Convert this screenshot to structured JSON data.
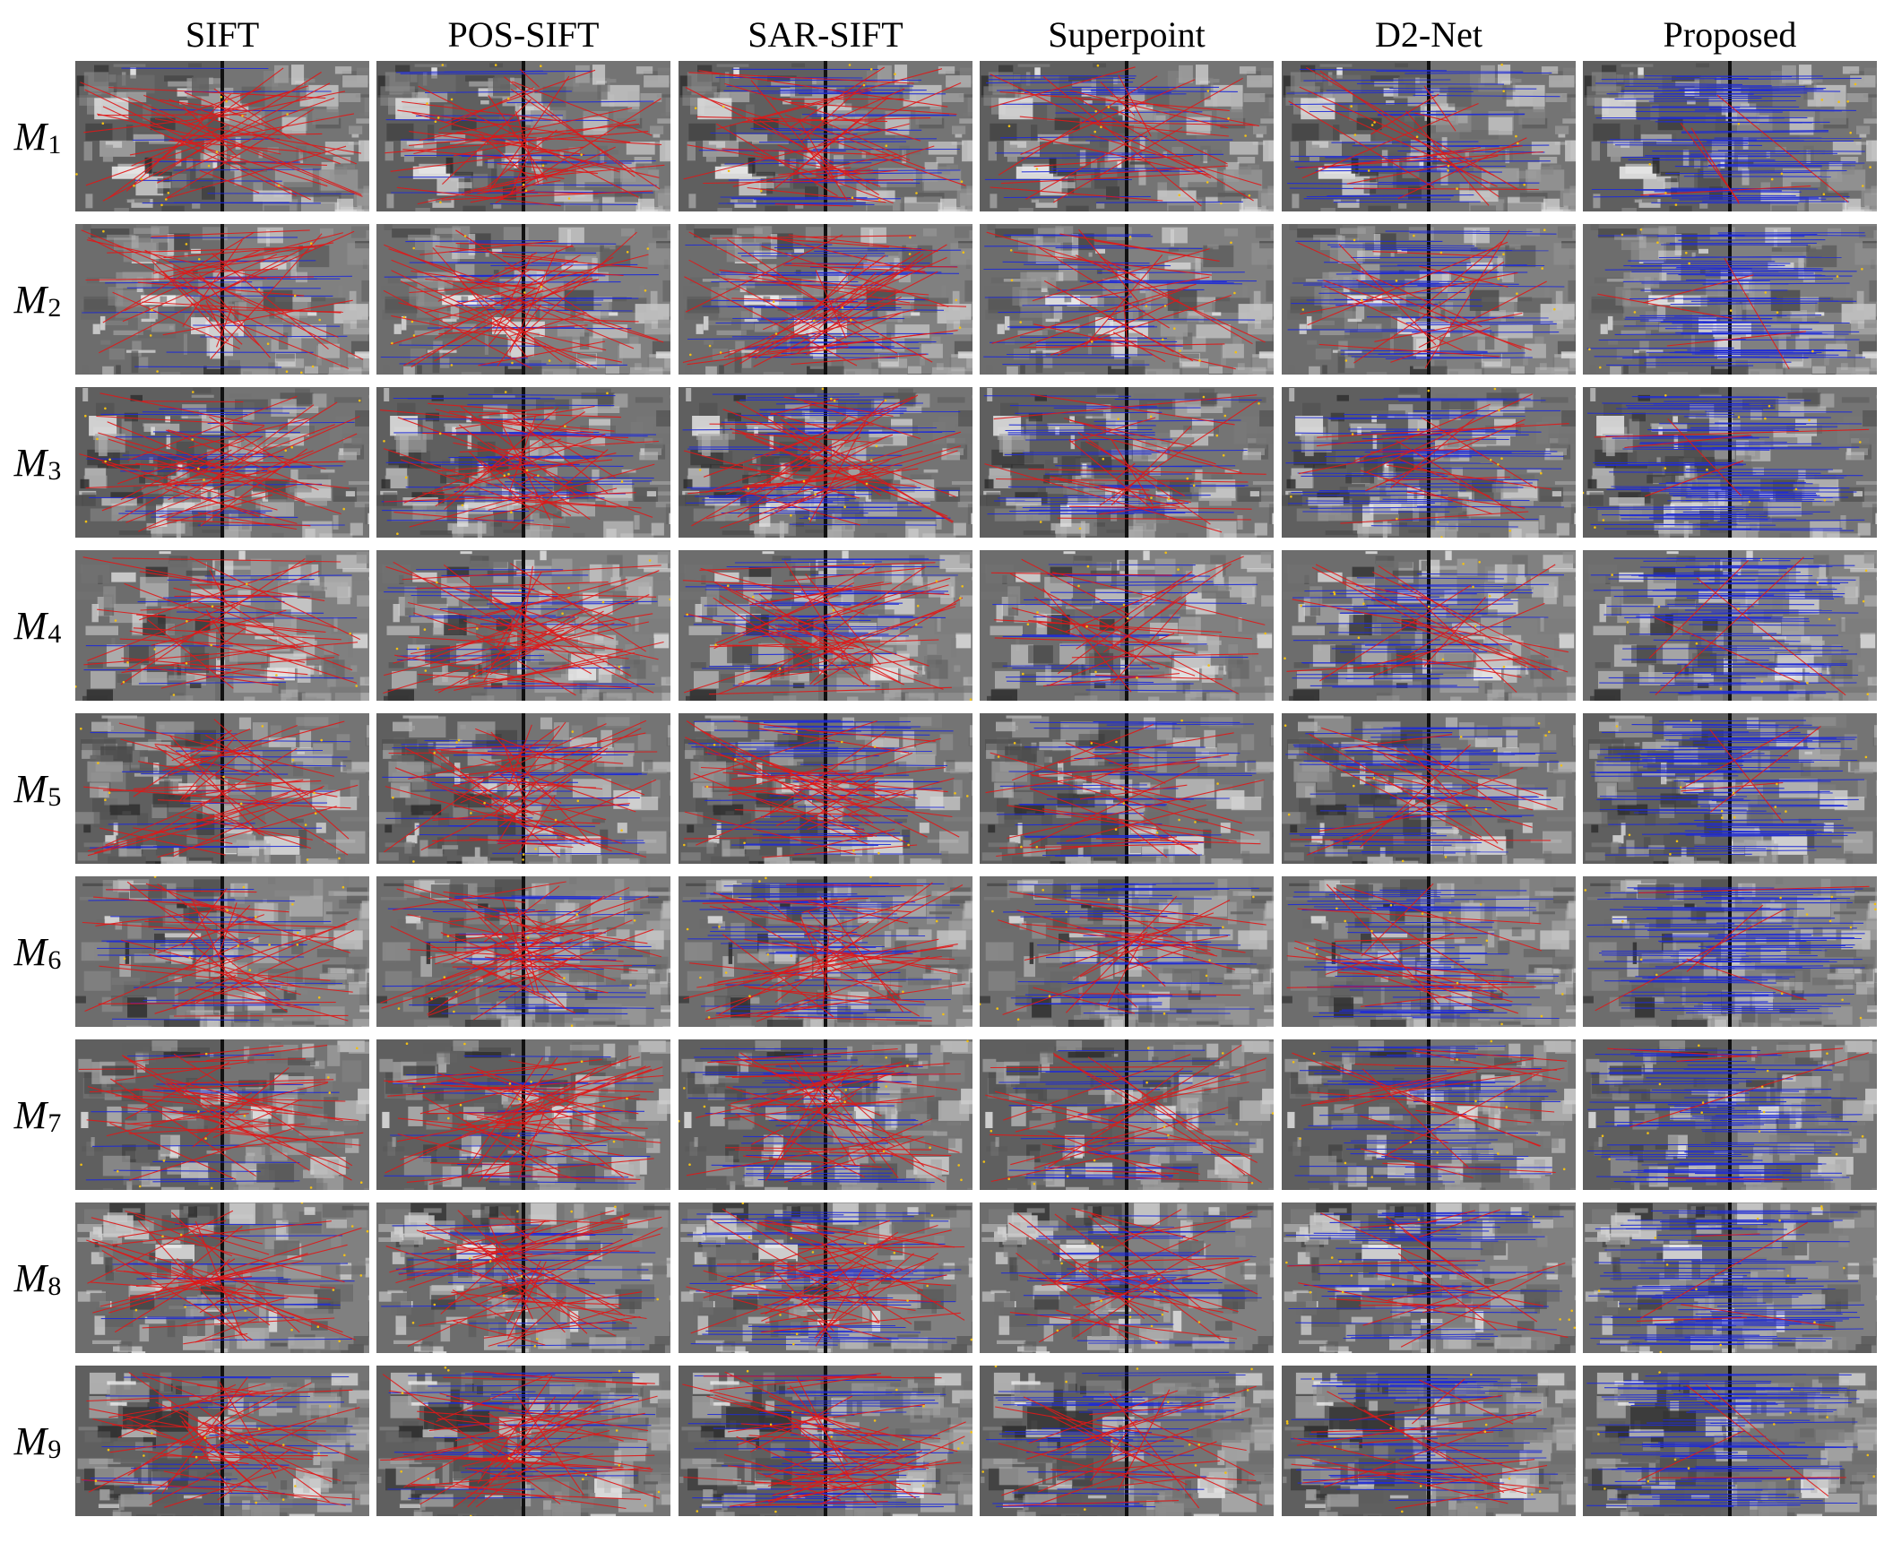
{
  "figure": {
    "methods": [
      "SIFT",
      "POS-SIFT",
      "SAR-SIFT",
      "Superpoint",
      "D2-Net",
      "Proposed"
    ],
    "rows": [
      {
        "base": "M",
        "sub": "1"
      },
      {
        "base": "M",
        "sub": "2"
      },
      {
        "base": "M",
        "sub": "3"
      },
      {
        "base": "M",
        "sub": "4"
      },
      {
        "base": "M",
        "sub": "5"
      },
      {
        "base": "M",
        "sub": "6"
      },
      {
        "base": "M",
        "sub": "7"
      },
      {
        "base": "M",
        "sub": "8"
      },
      {
        "base": "M",
        "sub": "9"
      }
    ],
    "colors": {
      "correct_match": "#1f2bd6",
      "incorrect_match": "#e01818",
      "keypoint": "#f2c014",
      "background": "#ffffff"
    },
    "panel_content": "matched SAR-optical image pair with correspondence lines"
  }
}
